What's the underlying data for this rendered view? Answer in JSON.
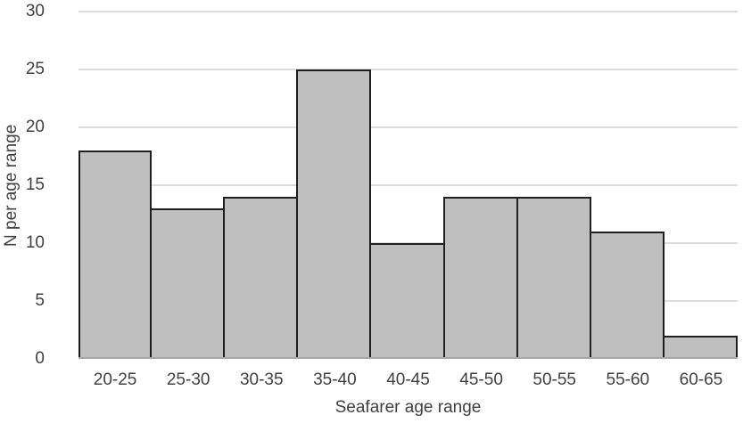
{
  "figure": {
    "background": "#ffffff"
  },
  "chart_data": {
    "type": "bar",
    "subtype": "histogram",
    "title": "",
    "xlabel": "Seafarer age range",
    "ylabel": "N per age range",
    "categories": [
      "20-25",
      "25-30",
      "30-35",
      "35-40",
      "40-45",
      "45-50",
      "50-55",
      "55-60",
      "60-65"
    ],
    "values": [
      18,
      13,
      14,
      25,
      10,
      14,
      14,
      11,
      2
    ],
    "ylim": [
      0,
      30
    ],
    "yticks": [
      0,
      5,
      10,
      15,
      20,
      25,
      30
    ],
    "grid": "horizontal",
    "legend": "none",
    "colors": {
      "bar_fill": "#bfbfbf",
      "bar_border": "#1f1f1f",
      "gridline": "#dcdcdc",
      "axis_line": "#a6a6a6",
      "text": "#404040",
      "background": "#ffffff"
    }
  }
}
